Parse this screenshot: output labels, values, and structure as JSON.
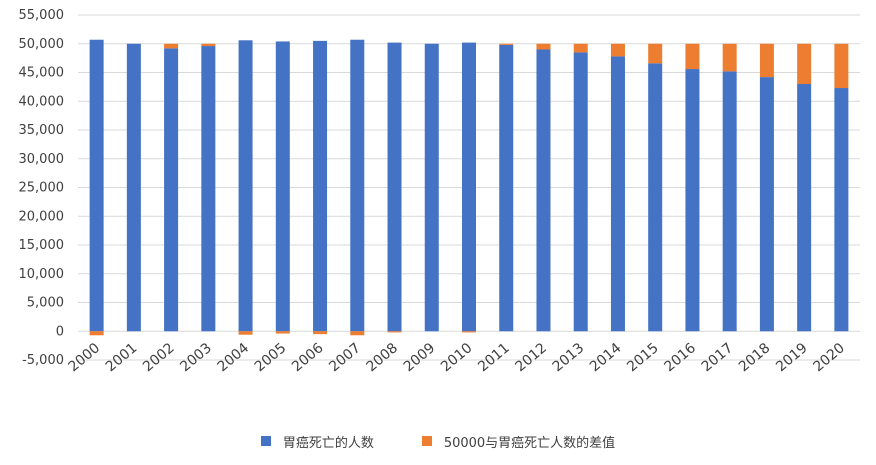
{
  "chart_data": {
    "type": "bar",
    "stacked": true,
    "categories": [
      "2000",
      "2001",
      "2002",
      "2003",
      "2004",
      "2005",
      "2006",
      "2007",
      "2008",
      "2009",
      "2010",
      "2011",
      "2012",
      "2013",
      "2014",
      "2015",
      "2016",
      "2017",
      "2018",
      "2019",
      "2020"
    ],
    "series": [
      {
        "name": "胃癌死亡的人数",
        "color": "#4472C4",
        "values": [
          50700,
          50000,
          49200,
          49600,
          50600,
          50400,
          50500,
          50700,
          50200,
          50000,
          50200,
          49800,
          49000,
          48500,
          47800,
          46600,
          45600,
          45200,
          44200,
          43000,
          42300
        ]
      },
      {
        "name": "50000与胃癌死亡人数的差值",
        "color": "#ED7D31",
        "values": [
          -700,
          0,
          800,
          400,
          -600,
          -400,
          -500,
          -700,
          -200,
          0,
          -200,
          200,
          1000,
          1500,
          2200,
          3400,
          4400,
          4800,
          5800,
          7000,
          7700
        ]
      }
    ],
    "ylim": [
      -5000,
      55000
    ],
    "yticks": [
      -5000,
      0,
      5000,
      10000,
      15000,
      20000,
      25000,
      30000,
      35000,
      40000,
      45000,
      50000,
      55000
    ],
    "ytick_labels": [
      "-5,000",
      "0",
      "5,000",
      "10,000",
      "15,000",
      "20,000",
      "25,000",
      "30,000",
      "35,000",
      "40,000",
      "45,000",
      "50,000",
      "55,000"
    ],
    "grid": true,
    "legend_position": "bottom",
    "title": "",
    "xlabel": "",
    "ylabel": ""
  }
}
